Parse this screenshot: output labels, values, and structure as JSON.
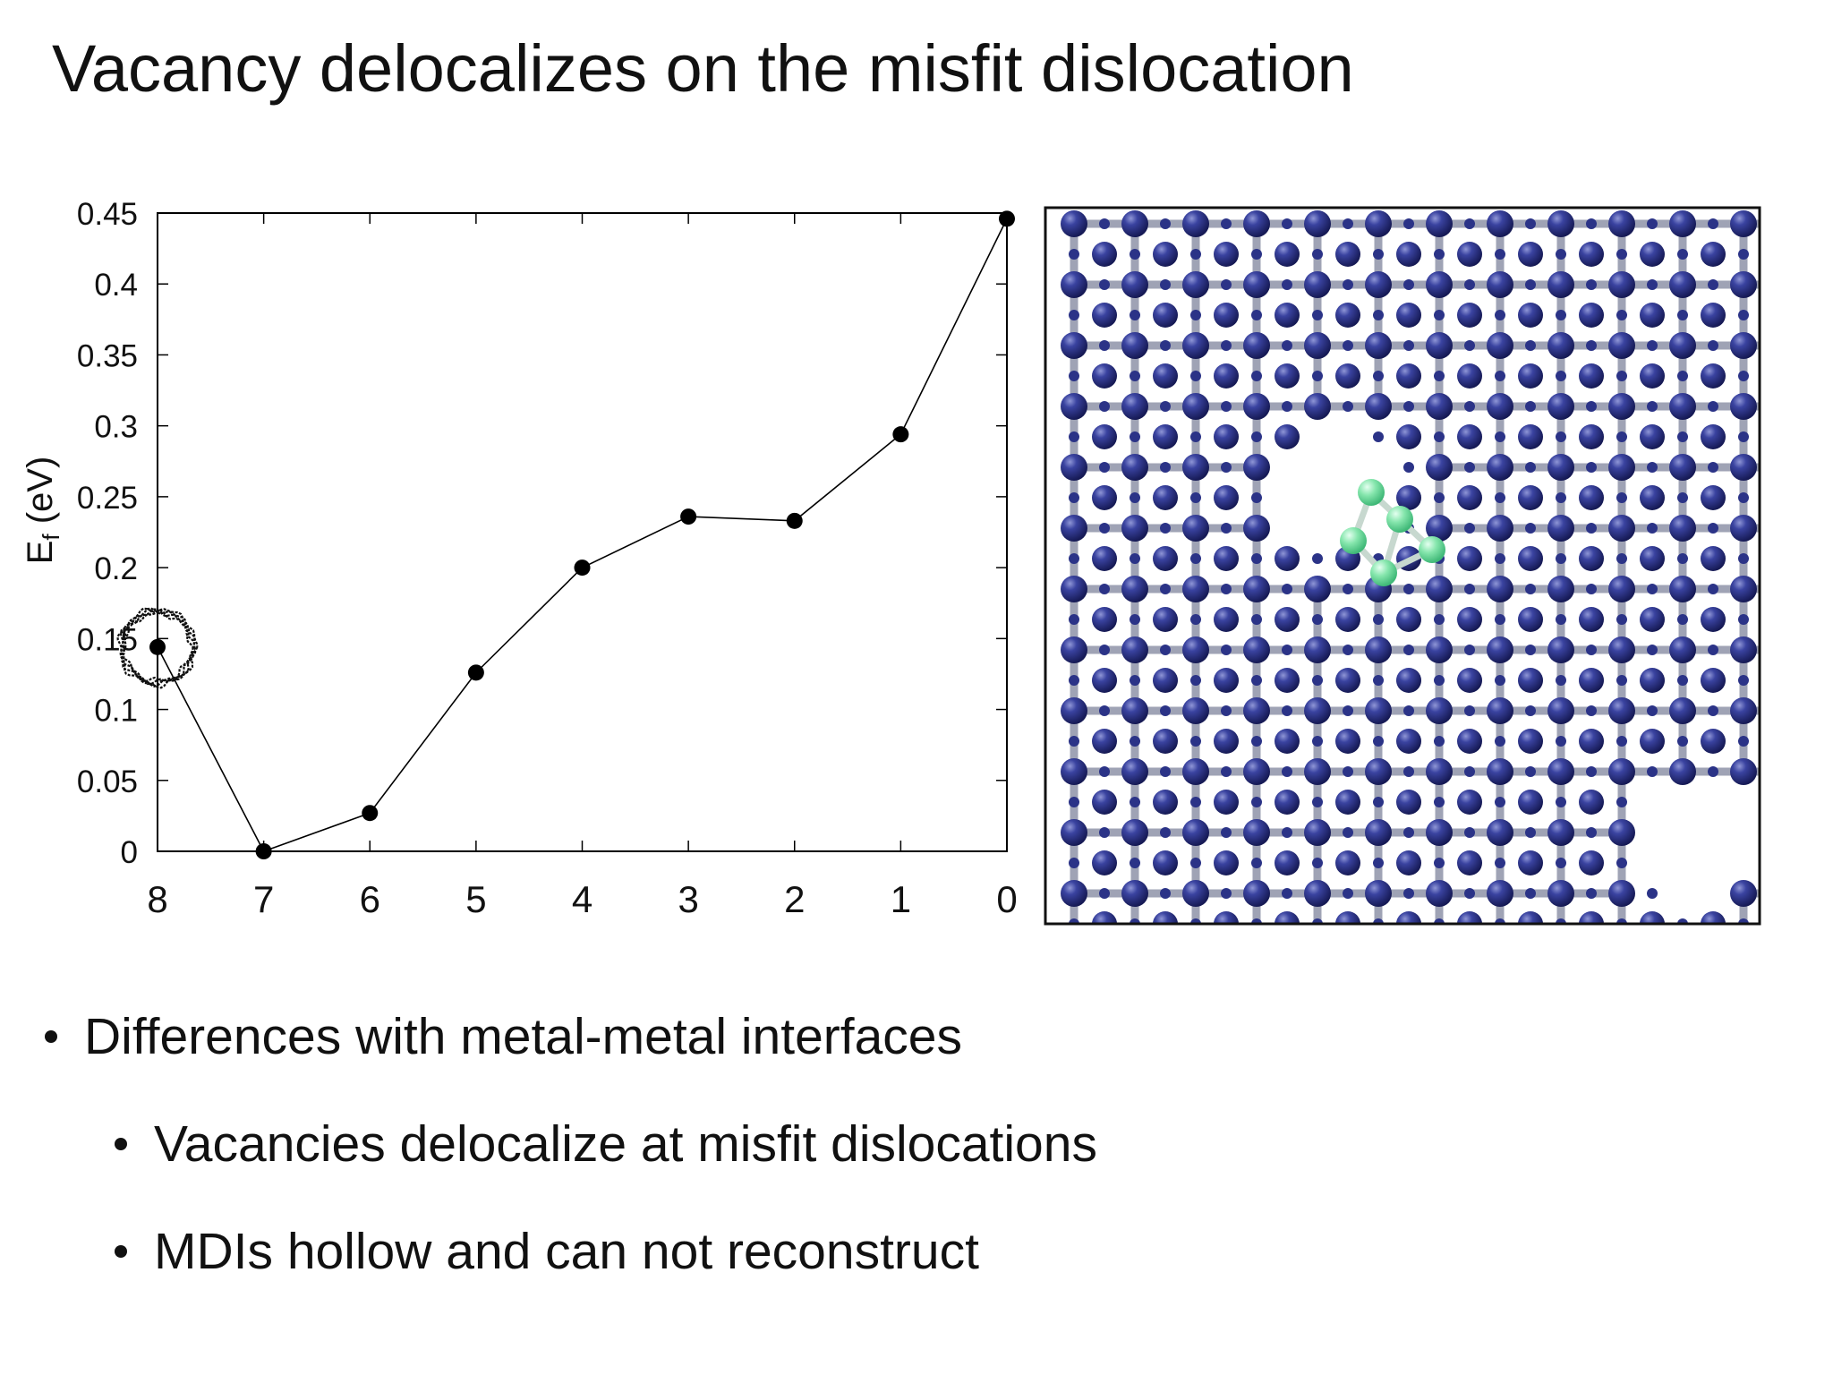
{
  "slide": {
    "title": "Vacancy delocalizes on the misfit dislocation"
  },
  "chart_data": {
    "type": "line",
    "xlabel": "",
    "ylabel": "E",
    "ylabel_sub": "f",
    "ylabel_unit": " (eV)",
    "x_tick_labels": [
      "8",
      "7",
      "6",
      "5",
      "4",
      "3",
      "2",
      "1",
      "0"
    ],
    "y_ticks": [
      0,
      0.05,
      0.1,
      0.15,
      0.2,
      0.25,
      0.3,
      0.35,
      0.4,
      0.45
    ],
    "y_tick_labels": [
      "0",
      "0.05",
      "0.1",
      "0.15",
      "0.2",
      "0.25",
      "0.3",
      "0.35",
      "0.4",
      "0.45"
    ],
    "ylim": [
      0,
      0.45
    ],
    "xlim_reversed": [
      8,
      0
    ],
    "x": [
      8,
      7,
      6,
      5,
      4,
      3,
      2,
      1,
      0
    ],
    "series": [
      {
        "values": [
          0.144,
          0.0,
          0.027,
          0.126,
          0.2,
          0.236,
          0.233,
          0.294,
          0.446
        ],
        "color": "#000000"
      }
    ],
    "grid": false,
    "highlight_circle_at_x": 8
  },
  "lattice_image": {
    "atom_color": "#2b3387",
    "highlight_atom_color": "#7ee3a8",
    "bond_color": "#9fa3b5"
  },
  "bullets": [
    {
      "level": 1,
      "text": "Differences with metal-metal interfaces"
    },
    {
      "level": 2,
      "text": "Vacancies delocalize at misfit dislocations"
    },
    {
      "level": 2,
      "text": "MDIs hollow and can not reconstruct"
    }
  ]
}
